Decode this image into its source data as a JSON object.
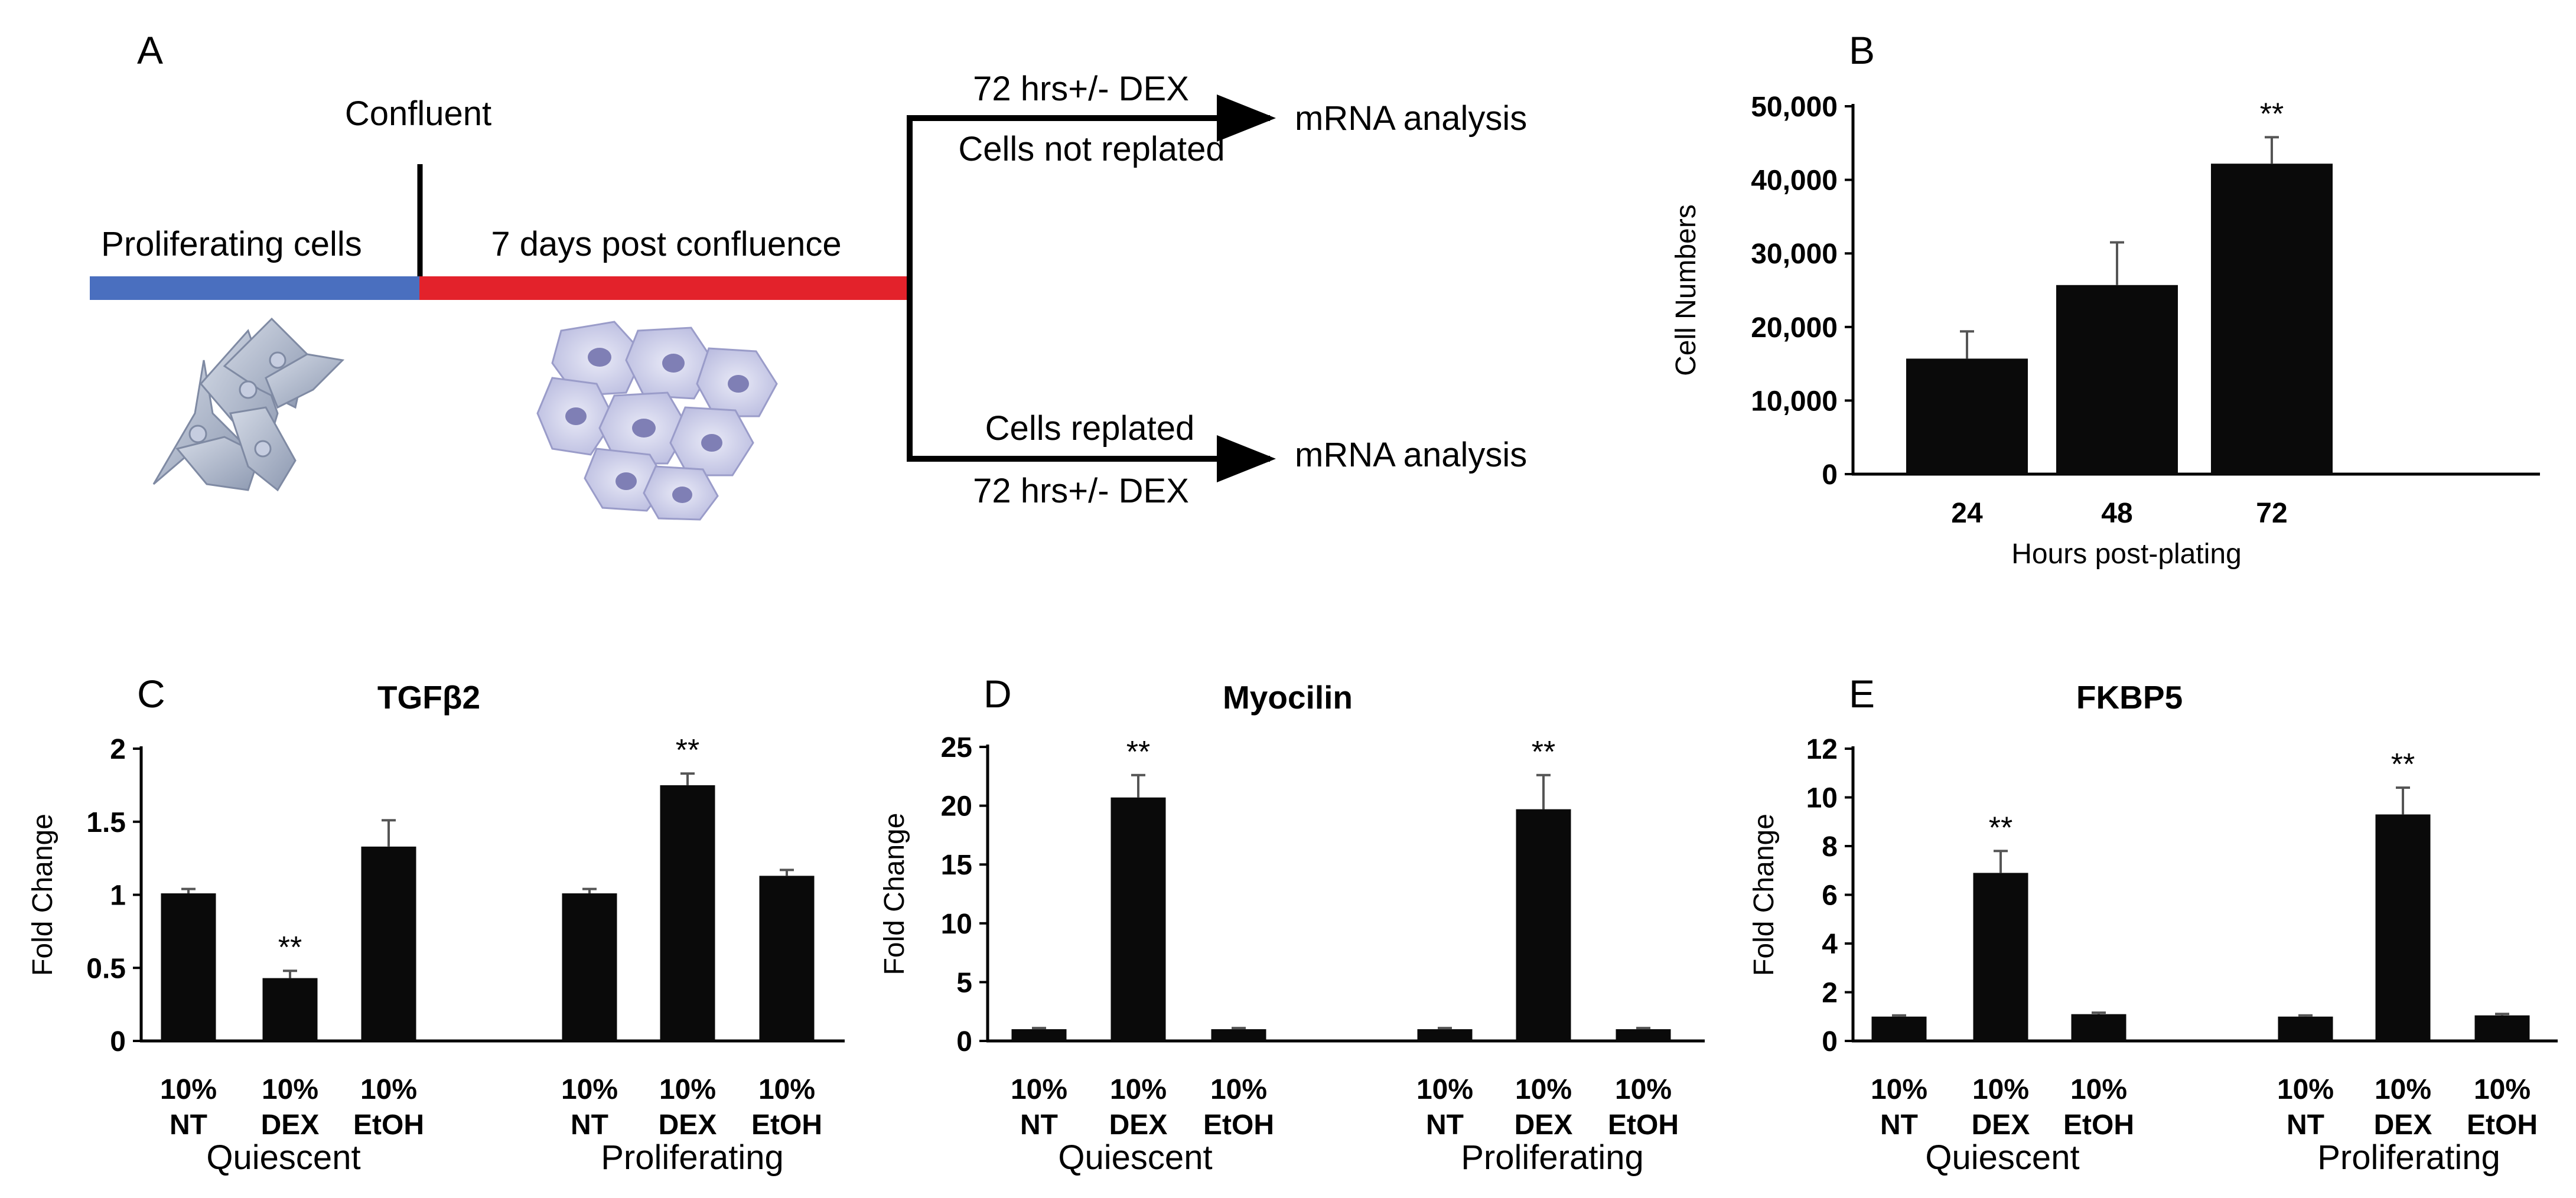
{
  "panels": {
    "A": "A",
    "B": "B",
    "C": "C",
    "D": "D",
    "E": "E"
  },
  "schematic": {
    "confluent": "Confluent",
    "proliferating_cells": "Proliferating cells",
    "post_confluence": "7 days post confluence",
    "top_branch_above": "72 hrs+/- DEX",
    "top_branch_below": "Cells not replated",
    "bottom_branch_above": "Cells replated",
    "bottom_branch_below": "72 hrs+/- DEX",
    "top_result": "mRNA analysis",
    "bottom_result": "mRNA analysis",
    "colors": {
      "proliferating": "#4a6fbf",
      "confluent": "#e3222b"
    }
  },
  "chart_data": [
    {
      "id": "B",
      "type": "bar",
      "title": "",
      "xlabel": "Hours post-plating",
      "ylabel": "Cell Numbers",
      "categories": [
        "24",
        "48",
        "72"
      ],
      "values": [
        15700,
        25700,
        42200
      ],
      "errors": [
        3700,
        5800,
        3600
      ],
      "significance": [
        "",
        "",
        "**"
      ],
      "ylim": [
        0,
        50000
      ],
      "yticks": [
        0,
        10000,
        20000,
        30000,
        40000,
        50000
      ],
      "ytick_labels": [
        "0",
        "10,000",
        "20,000",
        "30,000",
        "40,000",
        "50,000"
      ]
    },
    {
      "id": "C",
      "type": "bar",
      "title": "TGFβ2",
      "ylabel": "Fold Change",
      "groups": [
        "Quiescent",
        "Proliferating"
      ],
      "categories": [
        "10%\nNT",
        "10%\nDEX",
        "10%\nEtOH",
        "10%\nNT",
        "10%\nDEX",
        "10%\nEtOH"
      ],
      "values": [
        1.01,
        0.43,
        1.33,
        1.01,
        1.75,
        1.13
      ],
      "errors": [
        0.03,
        0.05,
        0.18,
        0.03,
        0.08,
        0.04
      ],
      "significance": [
        "",
        "**",
        "",
        "",
        "**",
        ""
      ],
      "ylim": [
        0,
        2
      ],
      "yticks": [
        0,
        0.5,
        1,
        1.5,
        2
      ],
      "ytick_labels": [
        "0",
        "0.5",
        "1",
        "1.5",
        "2"
      ]
    },
    {
      "id": "D",
      "type": "bar",
      "title": "Myocilin",
      "ylabel": "Fold Change",
      "groups": [
        "Quiescent",
        "Proliferating"
      ],
      "categories": [
        "10%\nNT",
        "10%\nDEX",
        "10%\nEtOH",
        "10%\nNT",
        "10%\nDEX",
        "10%\nEtOH"
      ],
      "values": [
        1.0,
        20.7,
        1.0,
        1.0,
        19.7,
        1.0
      ],
      "errors": [
        0.1,
        1.9,
        0.1,
        0.1,
        2.9,
        0.1
      ],
      "significance": [
        "",
        "**",
        "",
        "",
        "**",
        ""
      ],
      "ylim": [
        0,
        25
      ],
      "yticks": [
        0,
        5,
        10,
        15,
        20,
        25
      ],
      "ytick_labels": [
        "0",
        "5",
        "10",
        "15",
        "20",
        "25"
      ]
    },
    {
      "id": "E",
      "type": "bar",
      "title": "FKBP5",
      "ylabel": "Fold Change",
      "groups": [
        "Quiescent",
        "Proliferating"
      ],
      "categories": [
        "10%\nNT",
        "10%\nDEX",
        "10%\nEtOH",
        "10%\nNT",
        "10%\nDEX",
        "10%\nEtOH"
      ],
      "values": [
        1.0,
        6.9,
        1.1,
        1.0,
        9.3,
        1.05
      ],
      "errors": [
        0.05,
        0.9,
        0.06,
        0.05,
        1.1,
        0.06
      ],
      "significance": [
        "",
        "**",
        "",
        "",
        "**",
        ""
      ],
      "ylim": [
        0,
        12
      ],
      "yticks": [
        0,
        2,
        4,
        6,
        8,
        10,
        12
      ],
      "ytick_labels": [
        "0",
        "2",
        "4",
        "6",
        "8",
        "10",
        "12"
      ]
    }
  ]
}
